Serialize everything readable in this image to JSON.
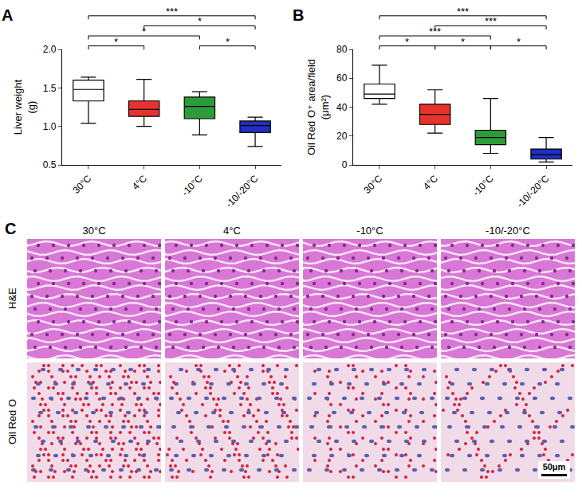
{
  "chart_data": [
    {
      "type": "box",
      "panel_label": "A",
      "y_label": "Liver weight (g)",
      "categories": [
        "30°C",
        "4°C",
        "-10°C",
        "-10/-20°C"
      ],
      "colors": [
        "#ffffff",
        "#e8322b",
        "#2e9b3a",
        "#1f2fbf"
      ],
      "lower_whisker": [
        1.04,
        1.0,
        0.89,
        0.74
      ],
      "q1": [
        1.33,
        1.13,
        1.1,
        0.92
      ],
      "median": [
        1.48,
        1.22,
        1.26,
        1.01
      ],
      "q3": [
        1.6,
        1.33,
        1.38,
        1.07
      ],
      "upper_whisker": [
        1.64,
        1.61,
        1.45,
        1.12
      ],
      "ylim": [
        0.5,
        2.0
      ],
      "yticks": [
        0.5,
        {
          "value": 1,
          "label": "1.0"
        },
        1.5,
        {
          "value": 2,
          "label": "2.0"
        }
      ],
      "grid": false,
      "significance": [
        {
          "from": "30°C",
          "to": "4°C",
          "label": "*"
        },
        {
          "from": "30°C",
          "to": "-10°C",
          "label": "*"
        },
        {
          "from": "30°C",
          "to": "-10/-20°C",
          "label": "***"
        },
        {
          "from": "4°C",
          "to": "-10/-20°C",
          "label": "*"
        },
        {
          "from": "-10°C",
          "to": "-10/-20°C",
          "label": "*"
        }
      ]
    },
    {
      "type": "box",
      "panel_label": "B",
      "y_label": "Oil Red O⁺ area/field (μm²)",
      "categories": [
        "30°C",
        "4°C",
        "-10°C",
        "-10/-20°C"
      ],
      "colors": [
        "#ffffff",
        "#e8322b",
        "#2e9b3a",
        "#1f2fbf"
      ],
      "lower_whisker": [
        42,
        22,
        8,
        2
      ],
      "q1": [
        46,
        28,
        14,
        4
      ],
      "median": [
        49,
        35,
        19,
        7
      ],
      "q3": [
        56,
        42,
        24,
        11
      ],
      "upper_whisker": [
        69,
        52,
        46,
        19
      ],
      "ylim": [
        0,
        80
      ],
      "yticks": [
        0,
        20,
        40,
        60,
        80
      ],
      "grid": false,
      "significance": [
        {
          "from": "30°C",
          "to": "4°C",
          "label": "*"
        },
        {
          "from": "30°C",
          "to": "-10°C",
          "label": "***"
        },
        {
          "from": "30°C",
          "to": "-10/-20°C",
          "label": "***"
        },
        {
          "from": "4°C",
          "to": "-10°C",
          "label": "*"
        },
        {
          "from": "4°C",
          "to": "-10/-20°C",
          "label": "***"
        },
        {
          "from": "-10°C",
          "to": "-10/-20°C",
          "label": "*"
        }
      ]
    }
  ],
  "image_panel": {
    "panel_label": "C",
    "columns": [
      "30°C",
      "4°C",
      "-10°C",
      "-10/-20°C"
    ],
    "rows": [
      "H&E",
      "Oil Red O"
    ],
    "scale_bar": "50μm"
  }
}
